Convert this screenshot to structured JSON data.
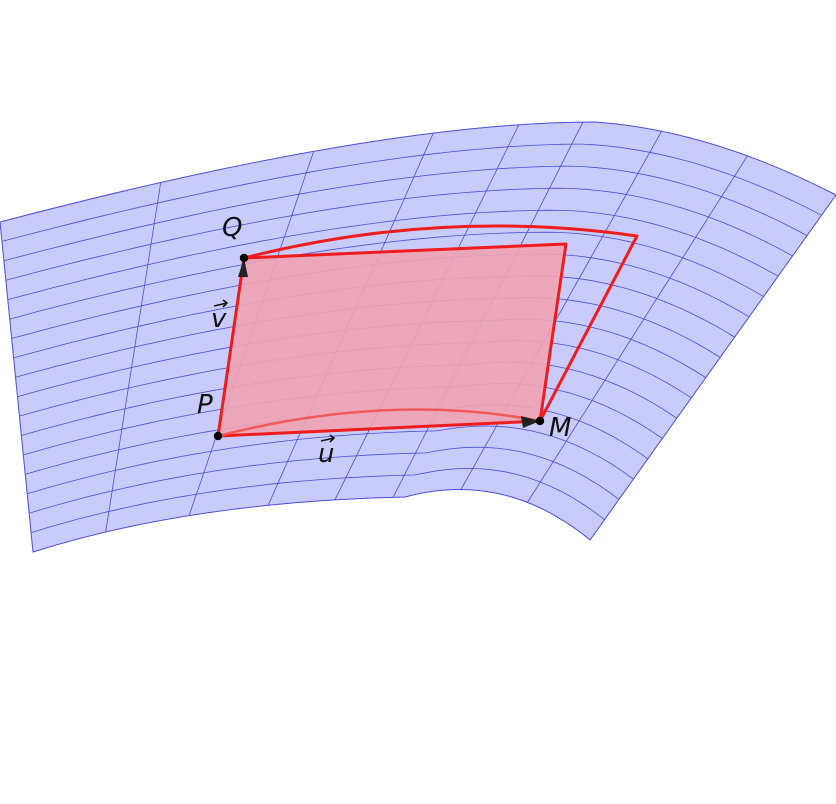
{
  "labels": {
    "Q": "Q",
    "P": "P",
    "M": "M",
    "u": "u",
    "v": "v"
  },
  "colors": {
    "surface_fill": "#c9cbfb",
    "surface_grid": "#4a4ed6",
    "outline": "#ee1c1c",
    "parallelogram_fill": "#f1a3b3",
    "point": "#000000",
    "text": "#111111"
  }
}
